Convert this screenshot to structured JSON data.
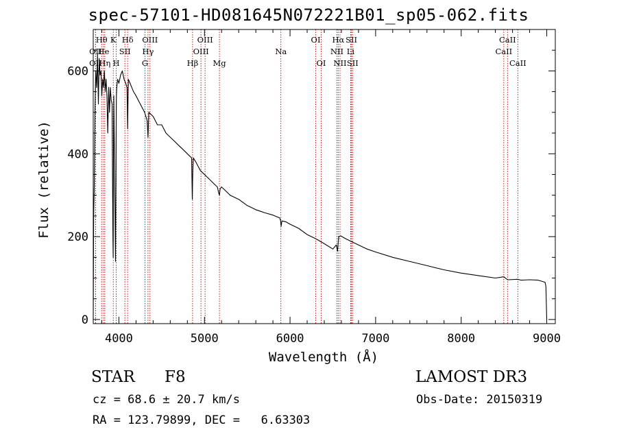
{
  "chart_data": {
    "type": "line",
    "title": "spec-57101-HD081645N072221B01_sp05-062.fits",
    "xlabel": "Wavelength (Å)",
    "ylabel": "Flux (relative)",
    "xlim": [
      3700,
      9100
    ],
    "ylim": [
      -10,
      700
    ],
    "xticks": [
      4000,
      5000,
      6000,
      7000,
      8000,
      9000
    ],
    "yticks": [
      0,
      200,
      400,
      600
    ],
    "series": [
      {
        "name": "spectrum",
        "x": [
          3700,
          3705,
          3712,
          3720,
          3730,
          3740,
          3750,
          3760,
          3770,
          3780,
          3790,
          3800,
          3810,
          3820,
          3830,
          3840,
          3850,
          3860,
          3870,
          3880,
          3890,
          3900,
          3910,
          3920,
          3930,
          3933,
          3936,
          3940,
          3950,
          3960,
          3965,
          3968,
          3971,
          3975,
          3985,
          4000,
          4020,
          4040,
          4060,
          4080,
          4095,
          4102,
          4110,
          4130,
          4150,
          4170,
          4200,
          4250,
          4300,
          4330,
          4340,
          4350,
          4400,
          4450,
          4500,
          4550,
          4600,
          4650,
          4700,
          4750,
          4800,
          4850,
          4858,
          4861,
          4864,
          4870,
          4900,
          4950,
          5000,
          5050,
          5100,
          5150,
          5167,
          5175,
          5183,
          5200,
          5250,
          5300,
          5400,
          5500,
          5600,
          5700,
          5800,
          5880,
          5890,
          5896,
          5905,
          5950,
          6000,
          6100,
          6200,
          6300,
          6400,
          6500,
          6540,
          6555,
          6563,
          6570,
          6590,
          6650,
          6700,
          6800,
          6900,
          7000,
          7200,
          7400,
          7600,
          7800,
          8000,
          8200,
          8400,
          8498,
          8542,
          8662,
          8700,
          8800,
          8900,
          8980,
          8990,
          9000
        ],
        "y": [
          0,
          250,
          320,
          500,
          600,
          560,
          640,
          520,
          630,
          590,
          600,
          540,
          580,
          560,
          600,
          550,
          580,
          540,
          450,
          560,
          500,
          560,
          530,
          520,
          200,
          150,
          380,
          540,
          350,
          140,
          320,
          480,
          540,
          560,
          580,
          570,
          590,
          600,
          580,
          570,
          560,
          460,
          580,
          570,
          560,
          550,
          540,
          520,
          500,
          480,
          440,
          500,
          490,
          470,
          470,
          450,
          440,
          430,
          420,
          410,
          400,
          390,
          290,
          330,
          360,
          390,
          380,
          360,
          350,
          340,
          330,
          320,
          305,
          300,
          315,
          320,
          310,
          300,
          290,
          275,
          265,
          258,
          252,
          245,
          238,
          225,
          238,
          236,
          230,
          220,
          205,
          195,
          183,
          170,
          180,
          165,
          185,
          200,
          202,
          195,
          190,
          180,
          170,
          163,
          150,
          140,
          130,
          120,
          112,
          106,
          100,
          103,
          96,
          97,
          95,
          96,
          95,
          90,
          80,
          0
        ]
      }
    ],
    "lines": [
      {
        "label": "Hθ",
        "x": 3798,
        "row": 0
      },
      {
        "label": "K",
        "x": 3934,
        "row": 0
      },
      {
        "label": "Hδ",
        "x": 4102,
        "row": 0
      },
      {
        "label": "OII",
        "x": 3727,
        "row": 1
      },
      {
        "label": "He",
        "x": 3820,
        "row": 1
      },
      {
        "label": "OII",
        "x": 3727,
        "row": 2
      },
      {
        "label": "Hη",
        "x": 3835,
        "row": 2
      },
      {
        "label": "H",
        "x": 3969,
        "row": 2
      },
      {
        "label": "SII",
        "x": 4070,
        "row": 1
      },
      {
        "label": "OIII",
        "x": 4363,
        "row": 0
      },
      {
        "label": "Hγ",
        "x": 4340,
        "row": 1
      },
      {
        "label": "G",
        "x": 4305,
        "row": 2
      },
      {
        "label": "Hβ",
        "x": 4861,
        "row": 2
      },
      {
        "label": "OIII",
        "x": 5007,
        "row": 0
      },
      {
        "label": "OIII",
        "x": 4959,
        "row": 1
      },
      {
        "label": "Mg",
        "x": 5175,
        "row": 2
      },
      {
        "label": "Na",
        "x": 5893,
        "row": 1
      },
      {
        "label": "OI",
        "x": 6300,
        "row": 0
      },
      {
        "label": "OI",
        "x": 6364,
        "row": 2
      },
      {
        "label": "Hα",
        "x": 6563,
        "row": 0
      },
      {
        "label": "SII",
        "x": 6717,
        "row": 0
      },
      {
        "label": "NII",
        "x": 6548,
        "row": 1
      },
      {
        "label": "Li",
        "x": 6708,
        "row": 1
      },
      {
        "label": "NII",
        "x": 6584,
        "row": 2
      },
      {
        "label": "SII",
        "x": 6731,
        "row": 2
      },
      {
        "label": "CaII",
        "x": 8542,
        "row": 0
      },
      {
        "label": "CaII",
        "x": 8498,
        "row": 1
      },
      {
        "label": "CaII",
        "x": 8662,
        "row": 2
      }
    ]
  },
  "info": {
    "class_label": "STAR",
    "subclass": "F8",
    "survey": "LAMOST DR3",
    "cz": "cz = 68.6 ± 20.7 km/s",
    "obs_date": "Obs-Date: 20150319",
    "coords": "RA = 123.79899, DEC =   6.63303"
  },
  "colors": {
    "line": "#000000",
    "marker": "#c00000",
    "background": "#ffffff"
  }
}
